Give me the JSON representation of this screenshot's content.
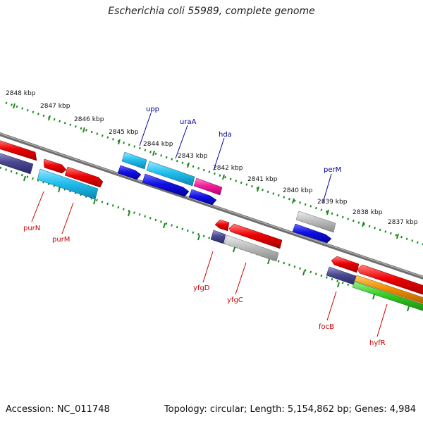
{
  "title": "Escherichia coli 55989, complete genome",
  "accession": "Accession: NC_011748",
  "summary": "Topology: circular; Length: 5,154,862 bp; Genes: 4,984",
  "colors": {
    "backbone": "#808080",
    "tick_marks": "#1a8a1a",
    "label_top": "#000099",
    "label_bottom": "#cc0000"
  },
  "scale_labels": [
    "2848 kbp",
    "2847 kbp",
    "2846 kbp",
    "2845 kbp",
    "2844 kbp",
    "2843 kbp",
    "2842 kbp",
    "2841 kbp",
    "2840 kbp",
    "2839 kbp",
    "2838 kbp",
    "2837 kbp"
  ],
  "gene_labels": {
    "upp": "upp",
    "uraA": "uraA",
    "hda": "hda",
    "perM": "perM",
    "purN": "purN",
    "purM": "purM",
    "yfgD": "yfgD",
    "yfgC": "yfgC",
    "focB": "focB",
    "hyfR": "hyfR"
  }
}
